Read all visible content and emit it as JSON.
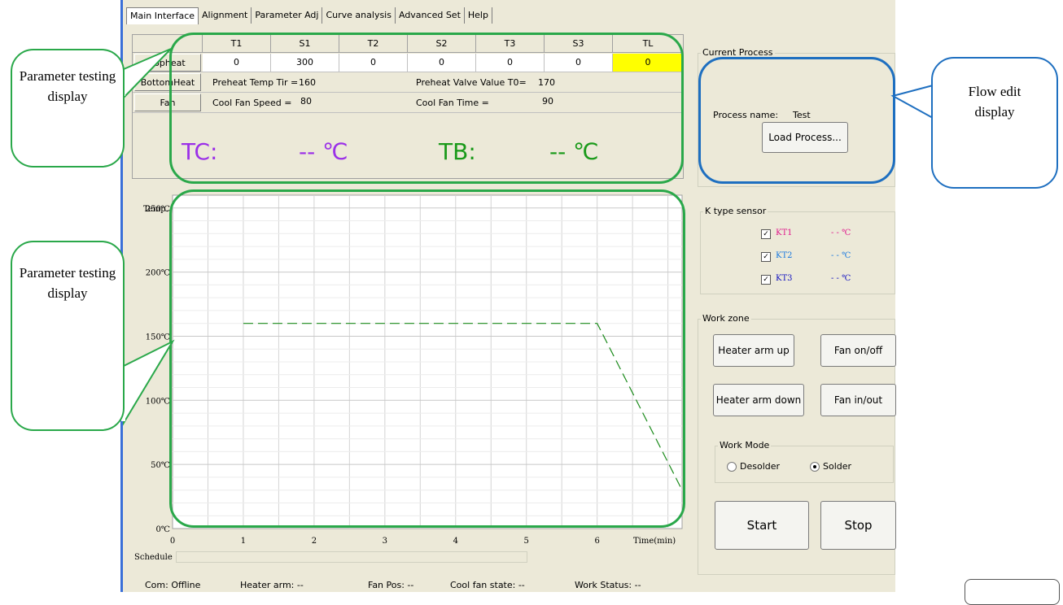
{
  "tabs": [
    "Main Interface",
    "Alignment",
    "Parameter Adj",
    "Curve analysis",
    "Advanced Set",
    "Help"
  ],
  "grid": {
    "headers": [
      "T1",
      "S1",
      "T2",
      "S2",
      "T3",
      "S3",
      "TL"
    ],
    "rows": {
      "topheat_label": "Topheat",
      "topheat_values": [
        "0",
        "300",
        "0",
        "0",
        "0",
        "0",
        "0"
      ],
      "bottomheat_label": "BottomHeat",
      "fan_label": "Fan"
    },
    "preheat_temp": "Preheat Temp Tir =",
    "preheat_temp_val": "160",
    "preheat_valve": "Preheat Valve Value T0=",
    "preheat_valve_val": "170",
    "cool_fan_speed": "Cool Fan Speed =",
    "cool_fan_speed_val": "80",
    "cool_fan_time": "Cool Fan Time =",
    "cool_fan_time_val": "90",
    "tc_label": "TC:",
    "tc_value": "-- ℃",
    "tb_label": "TB:",
    "tb_value": "-- ℃",
    "tc_color": "#9b30e8",
    "tb_color": "#1a9a1a",
    "highlight_color": "#ffff00"
  },
  "current_process": {
    "group_title": "Current Process",
    "process_name_label": "Process name:",
    "process_name": "Test",
    "load_button": "Load Process..."
  },
  "sensor": {
    "group_title": "K type sensor",
    "items": [
      {
        "label": "KT1",
        "value": "- -  ℃",
        "color": "#e0188c"
      },
      {
        "label": "KT2",
        "value": "- -  ℃",
        "color": "#1878e0"
      },
      {
        "label": "KT3",
        "value": "- -  ℃",
        "color": "#1010c0"
      }
    ]
  },
  "work_zone": {
    "group_title": "Work zone",
    "heater_up": "Heater arm up",
    "fan_onoff": "Fan on/off",
    "heater_down": "Heater arm down",
    "fan_inout": "Fan in/out",
    "mode_title": "Work Mode",
    "desolder": "Desolder",
    "solder": "Solder",
    "selected_mode": "Solder",
    "start": "Start",
    "stop": "Stop"
  },
  "chart_data": {
    "type": "line",
    "ylabel": "Temp.",
    "xlabel": "Time(min)",
    "yticks": [
      "250℃",
      "200℃",
      "150℃",
      "100℃",
      "50℃",
      "0℃"
    ],
    "xticks": [
      "0",
      "1",
      "2",
      "3",
      "4",
      "5",
      "6"
    ],
    "xlim": [
      0,
      7.2
    ],
    "ylim": [
      0,
      260
    ],
    "grid": true,
    "series": [
      {
        "x": [
          1,
          6,
          7.2
        ],
        "y": [
          160,
          160,
          30
        ],
        "color": "#1a8a1a",
        "dashed": true
      }
    ]
  },
  "schedule_label": "Schedule",
  "status": {
    "com": "Com: Offline",
    "heater_arm": "Heater arm: --",
    "fan_pos": "Fan Pos: --",
    "cool_fan_state": "Cool fan state: --",
    "work_status": "Work Status: --"
  },
  "callouts": {
    "param_top": "Parameter testing display",
    "param_bottom": "Parameter testing display",
    "flow_edit": "Flow edit display",
    "green": "#2aa84a",
    "blue": "#1e6fc0"
  }
}
